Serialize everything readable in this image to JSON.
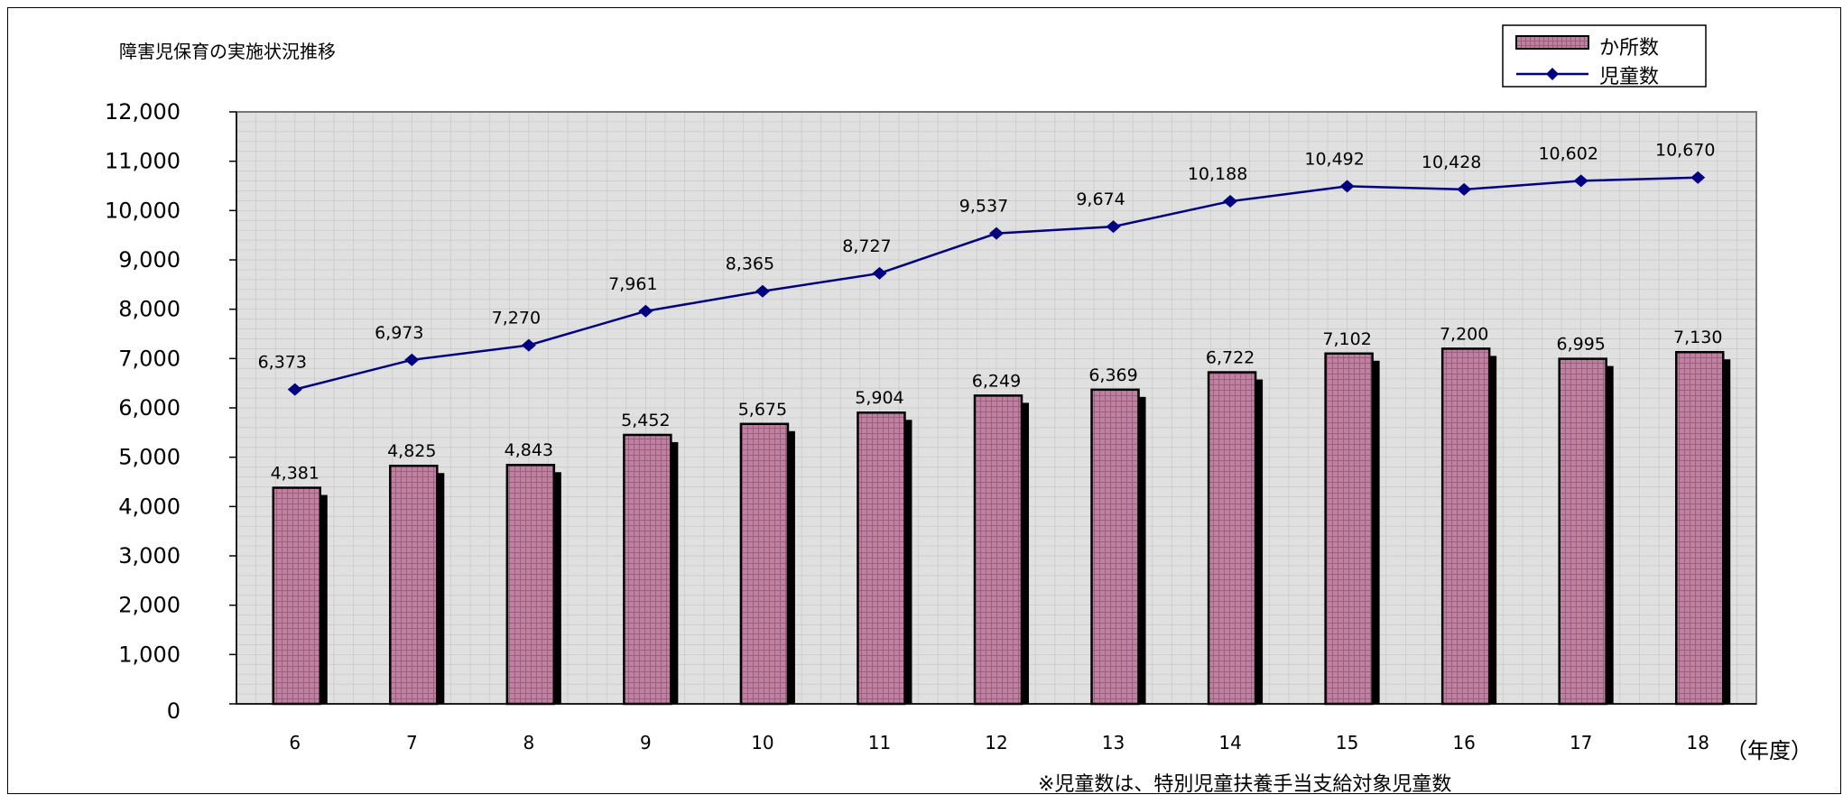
{
  "chart_data": {
    "type": "bar",
    "title": "障害児保育の実施状況推移",
    "categories": [
      "6",
      "7",
      "8",
      "9",
      "10",
      "11",
      "12",
      "13",
      "14",
      "15",
      "16",
      "17",
      "18"
    ],
    "x_unit": "（年度）",
    "series": [
      {
        "name": "か所数",
        "type": "bar",
        "color": "#c080a0",
        "values": [
          4381,
          4825,
          4843,
          5452,
          5675,
          5904,
          6249,
          6369,
          6722,
          7102,
          7200,
          6995,
          7130
        ],
        "labels": [
          "4,381",
          "4,825",
          "4,843",
          "5,452",
          "5,675",
          "5,904",
          "6,249",
          "6,369",
          "6,722",
          "7,102",
          "7,200",
          "6,995",
          "7,130"
        ]
      },
      {
        "name": "児童数",
        "type": "line",
        "color": "#000080",
        "values": [
          6373,
          6973,
          7270,
          7961,
          8365,
          8727,
          9537,
          9674,
          10188,
          10492,
          10428,
          10602,
          10670
        ],
        "labels": [
          "6,373",
          "6,973",
          "7,270",
          "7,961",
          "8,365",
          "8,727",
          "9,537",
          "9,674",
          "10,188",
          "10,492",
          "10,428",
          "10,602",
          "10,670"
        ]
      }
    ],
    "ylim": [
      0,
      12000
    ],
    "y_ticks": [
      "0",
      "1,000",
      "2,000",
      "3,000",
      "4,000",
      "5,000",
      "6,000",
      "7,000",
      "8,000",
      "9,000",
      "10,000",
      "11,000",
      "12,000"
    ],
    "grid": true,
    "legend_position": "top-right",
    "footnote": "※児童数は、特別児童扶養手当支給対象児童数"
  },
  "colors": {
    "plot_bg": "#e0e0e0",
    "grid": "#c8c8c8",
    "bar_fill": "#c080a0",
    "bar_hatch": "#9a5f7e",
    "bar_shadow": "#000000",
    "line": "#000080"
  }
}
